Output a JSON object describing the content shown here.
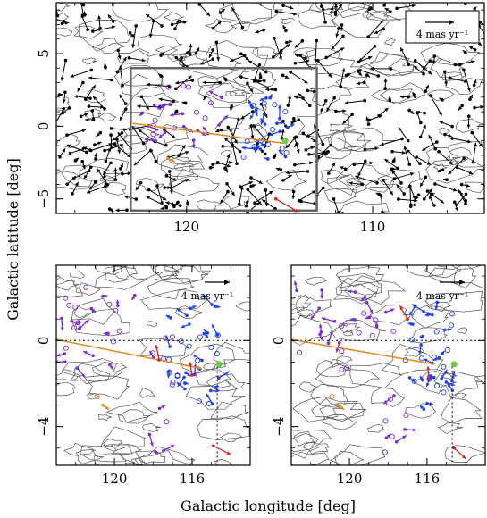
{
  "figure": {
    "xlabel": "Galactic longitude [deg]",
    "ylabel": "Galactic latitude [deg]"
  },
  "colors": {
    "stars": "#000000",
    "contours": "#555555",
    "box": "#666666",
    "purple": "#7a2be0",
    "blue": "#1f3fff",
    "orange": "#e08a1e",
    "red": "#e0201a",
    "green": "#6ad040"
  },
  "chart_data": [
    {
      "id": "top",
      "type": "scatter",
      "xlim": [
        127,
        104
      ],
      "ylim": [
        -6,
        8.5
      ],
      "xticks": [
        120,
        110
      ],
      "yticks": [
        -5,
        0,
        5
      ],
      "legend": {
        "text": "4 mas yr⁻¹",
        "position": "top-right"
      },
      "box_region": {
        "x": [
          123,
          113
        ],
        "y": [
          -5.8,
          4
        ]
      },
      "highlight_line": {
        "from": [
          122.9,
          0.2
        ],
        "to": [
          114.6,
          -1.2
        ]
      },
      "red_segment": {
        "from": [
          115.2,
          -5.0
        ],
        "to": [
          114.0,
          -5.9
        ]
      },
      "green_marker": [
        114.7,
        -1.0
      ]
    },
    {
      "id": "bottom-left",
      "type": "scatter",
      "xlim": [
        123,
        113
      ],
      "ylim": [
        -5.8,
        3.5
      ],
      "xticks": [
        120,
        116
      ],
      "yticks": [
        -4,
        0
      ],
      "legend": {
        "text": "4 mas yr⁻¹",
        "position": "top-right"
      },
      "dotted_h": 0,
      "dotted_v_x": 114.7,
      "highlight_line": {
        "from": [
          123,
          0.05
        ],
        "to": [
          115.5,
          -1.3
        ]
      },
      "green_marker": [
        114.6,
        -1.1
      ],
      "red_vectors": [
        {
          "x": 117.7,
          "y": -0.9,
          "dx": 0.15,
          "dy": 0.7
        },
        {
          "x": 116.0,
          "y": -1.6,
          "dx": 0.1,
          "dy": 0.6
        },
        {
          "x": 114.9,
          "y": -4.9,
          "dx": -0.9,
          "dy": -0.4
        }
      ]
    },
    {
      "id": "bottom-right",
      "type": "scatter",
      "xlim": [
        123,
        113
      ],
      "ylim": [
        -5.8,
        3.5
      ],
      "xticks": [
        120,
        116
      ],
      "yticks": [
        -4,
        0
      ],
      "legend": {
        "text": "4 mas yr⁻¹",
        "position": "top-right"
      },
      "dotted_h": 0,
      "dotted_v_x": 114.7,
      "highlight_line": {
        "from": [
          123,
          0.05
        ],
        "to": [
          115.6,
          -1.1
        ]
      },
      "green_marker": [
        114.6,
        -1.1
      ],
      "red_vectors": [
        {
          "x": 117.0,
          "y": 1.0,
          "dx": 0.4,
          "dy": 0.6
        },
        {
          "x": 115.9,
          "y": -1.8,
          "dx": 0.05,
          "dy": 0.6
        },
        {
          "x": 114.6,
          "y": -5.0,
          "dx": -0.6,
          "dy": -0.5
        }
      ]
    }
  ]
}
